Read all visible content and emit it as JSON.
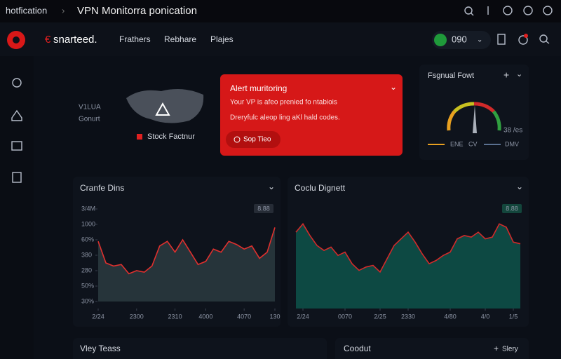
{
  "window": {
    "left": "hotfication",
    "title": "VPN Monitorra ponication"
  },
  "nav": {
    "brand": "snarteed.",
    "links": [
      "Frathers",
      "Rebhare",
      "Plajes"
    ],
    "status": "090"
  },
  "map_panel": {
    "label_top": "V1LUA",
    "label_bottom": "Gonurt",
    "legend": "Stock Factnur"
  },
  "alert": {
    "title": "Alert muritoring",
    "line1": "Your VP is afeo prenied fo ntabiois",
    "line2": "Dreryfulc aleop ling aKl hald codes.",
    "button": "Sop Tieo"
  },
  "gauge": {
    "title": "Fsgnual Fowt",
    "value_label": "38 /es",
    "legend": [
      "ENE",
      "CV",
      "DMV"
    ]
  },
  "chart_data": [
    {
      "type": "area",
      "title": "Cranfe Dins",
      "badge": "8.88",
      "color": "#e0302e",
      "fill": "#26343a",
      "x": [
        0,
        1,
        2,
        3,
        4,
        5,
        6,
        7,
        8,
        9,
        10,
        11,
        12,
        13,
        14,
        15,
        16,
        17,
        18,
        19,
        20,
        21,
        22,
        23
      ],
      "values": [
        3.9,
        2.5,
        2.3,
        2.4,
        1.8,
        2.0,
        1.9,
        2.3,
        3.6,
        3.9,
        3.2,
        4.0,
        3.2,
        2.4,
        2.6,
        3.4,
        3.2,
        3.9,
        3.7,
        3.4,
        3.6,
        2.8,
        3.2,
        4.8
      ],
      "xlim": [
        0,
        23
      ],
      "ylim": [
        0,
        6
      ],
      "xticks": [
        {
          "value": 0,
          "label": "2/24"
        },
        {
          "value": 5,
          "label": "2300"
        },
        {
          "value": 10,
          "label": "2310"
        },
        {
          "value": 14,
          "label": "4000"
        },
        {
          "value": 19,
          "label": "4070"
        },
        {
          "value": 23,
          "label": "130"
        }
      ],
      "yticks": [
        {
          "value": 6,
          "label": "3/4M"
        },
        {
          "value": 5,
          "label": "1000"
        },
        {
          "value": 4,
          "label": "60%"
        },
        {
          "value": 3,
          "label": "380"
        },
        {
          "value": 2,
          "label": "280"
        },
        {
          "value": 1,
          "label": "50%"
        },
        {
          "value": 0,
          "label": "30%"
        }
      ]
    },
    {
      "type": "area",
      "title": "Coclu Dignett",
      "badge": "8.88",
      "color": "#d22a2a",
      "fill": "#0d4943",
      "x": [
        0,
        1,
        2,
        3,
        4,
        5,
        6,
        7,
        8,
        9,
        10,
        11,
        12,
        13,
        14,
        15,
        16,
        17,
        18,
        19,
        20,
        21,
        22,
        23,
        24,
        25,
        26,
        27,
        28,
        29,
        30,
        31,
        32
      ],
      "values": [
        4.6,
        5.1,
        4.4,
        3.8,
        3.5,
        3.7,
        3.2,
        3.4,
        2.7,
        2.3,
        2.5,
        2.6,
        2.2,
        3.0,
        3.8,
        4.2,
        4.6,
        4.0,
        3.3,
        2.7,
        2.9,
        3.2,
        3.4,
        4.2,
        4.4,
        4.3,
        4.6,
        4.2,
        4.3,
        5.1,
        4.9,
        4.0,
        3.9
      ],
      "xlim": [
        0,
        32
      ],
      "ylim": [
        0,
        6
      ],
      "xticks": [
        {
          "value": 1,
          "label": "2/24"
        },
        {
          "value": 7,
          "label": "0070"
        },
        {
          "value": 12,
          "label": "2/25"
        },
        {
          "value": 16,
          "label": "2330"
        },
        {
          "value": 22,
          "label": "4/80"
        },
        {
          "value": 27,
          "label": "4/0"
        },
        {
          "value": 31,
          "label": "1/5"
        }
      ]
    }
  ],
  "bottom": {
    "left": "Vley Teass",
    "right_title": "Coodut",
    "right_action": "Slery"
  }
}
